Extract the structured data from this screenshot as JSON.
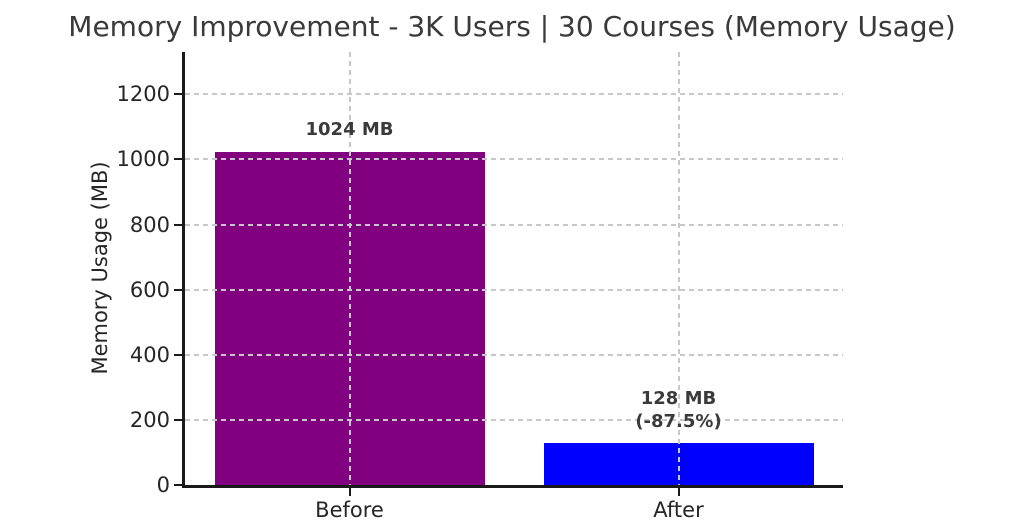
{
  "chart_data": {
    "type": "bar",
    "title": "Memory Improvement - 3K Users | 30 Courses (Memory Usage)",
    "ylabel": "Memory Usage (MB)",
    "xlabel": "",
    "categories": [
      "Before",
      "After"
    ],
    "values": [
      1024,
      128
    ],
    "bar_value_labels": [
      [
        "1024 MB"
      ],
      [
        "128 MB",
        "(-87.5%)"
      ]
    ],
    "bar_colors": [
      "#800080",
      "#0000ff"
    ],
    "yticks": [
      0,
      200,
      400,
      600,
      800,
      1000,
      1200
    ],
    "ylim": [
      0,
      1330
    ],
    "grid": true,
    "grid_style": "dashed",
    "legend_position": "none"
  },
  "colors": {
    "background": "#ffffff",
    "title_text": "#3a3a3a",
    "tick_text": "#262626",
    "grid_line": "#c8c8c8",
    "spine": "#1a1a1a"
  }
}
